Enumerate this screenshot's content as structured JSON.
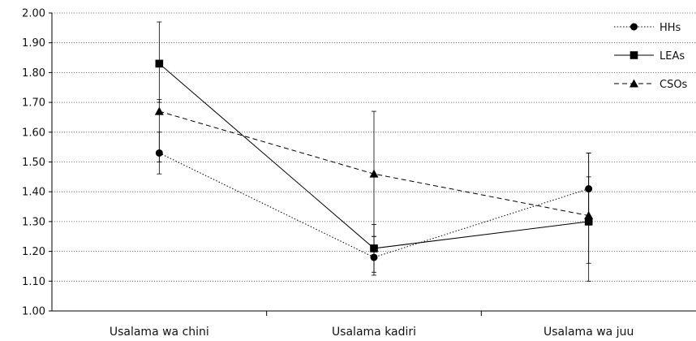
{
  "chart_data": {
    "type": "line",
    "title": "",
    "xlabel": "",
    "ylabel": "",
    "categories": [
      "Usalama wa chini",
      "Usalama kadiri",
      "Usalama wa juu"
    ],
    "ylim": [
      1.0,
      2.0
    ],
    "yticks": [
      "1.00",
      "1.10",
      "1.20",
      "1.30",
      "1.40",
      "1.50",
      "1.60",
      "1.70",
      "1.80",
      "1.90",
      "2.00"
    ],
    "grid": "horizontal-dotted",
    "legend_position": "top-right",
    "series": [
      {
        "name": "HHs",
        "marker": "circle",
        "line_style": "dotted",
        "values": [
          1.53,
          1.18,
          1.41
        ],
        "error_low": [
          1.46,
          1.12,
          1.29
        ],
        "error_high": [
          1.6,
          1.25,
          1.53
        ]
      },
      {
        "name": "LEAs",
        "marker": "square",
        "line_style": "solid",
        "values": [
          1.83,
          1.21,
          1.3
        ],
        "error_low": [
          1.7,
          1.13,
          1.1
        ],
        "error_high": [
          1.97,
          1.29,
          1.53
        ]
      },
      {
        "name": "CSOs",
        "marker": "triangle",
        "line_style": "dashed",
        "values": [
          1.67,
          1.46,
          1.32
        ],
        "error_low": [
          1.5,
          1.25,
          1.16
        ],
        "error_high": [
          1.71,
          1.67,
          1.45
        ]
      }
    ]
  }
}
